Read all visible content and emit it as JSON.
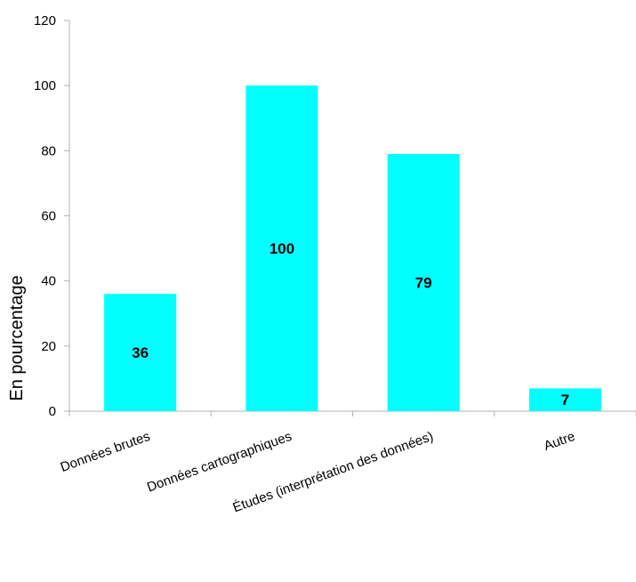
{
  "chart_data": {
    "type": "bar",
    "title": "",
    "xlabel": "",
    "ylabel": "En pourcentage",
    "ylim": [
      0,
      120
    ],
    "yticks": [
      0,
      20,
      40,
      60,
      80,
      100,
      120
    ],
    "categories": [
      "Données brutes",
      "Données cartographiques",
      "Études (interprétation des données)",
      "Autre"
    ],
    "values": [
      36,
      100,
      79,
      7
    ],
    "data_labels": [
      "36",
      "100",
      "79",
      "7"
    ],
    "bar_color": "#00ffff",
    "grid": false,
    "legend": "none"
  }
}
